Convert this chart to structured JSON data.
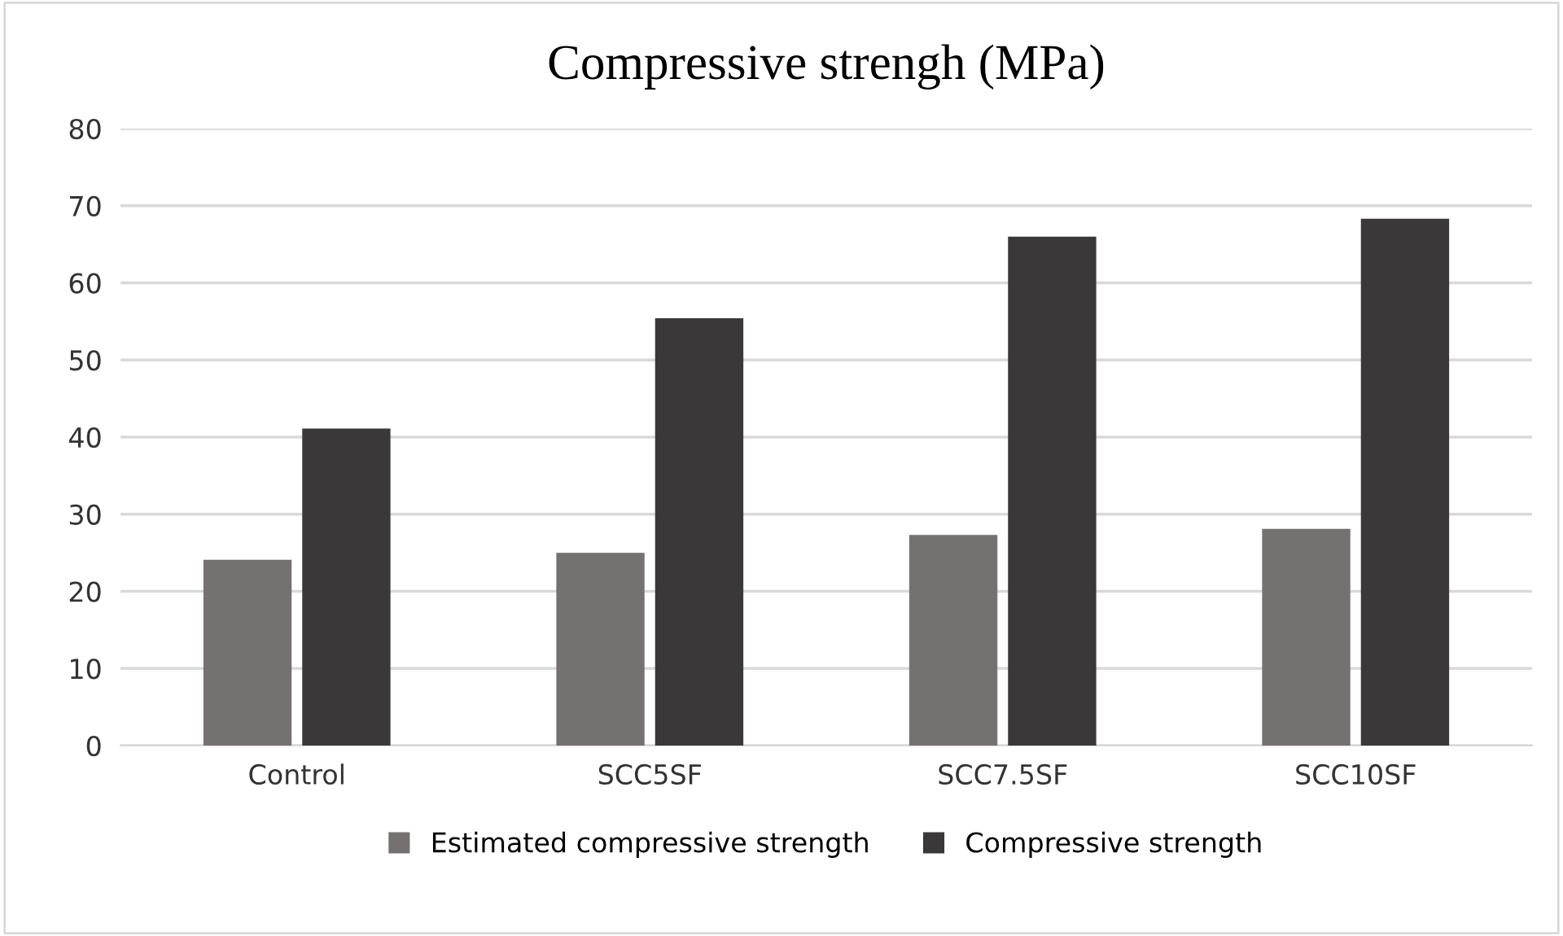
{
  "chart_data": {
    "type": "bar",
    "title": "Compressive strengh (MPa)",
    "categories": [
      "Control",
      "SCC5SF",
      "SCC7.5SF",
      "SCC10SF"
    ],
    "series": [
      {
        "name": "Estimated compressive strength",
        "color": "#767171",
        "values": [
          24.1,
          25.0,
          27.3,
          28.1
        ]
      },
      {
        "name": "Compressive strength",
        "color": "#3a3838",
        "values": [
          41.1,
          55.4,
          66.0,
          68.3
        ]
      }
    ],
    "ylim": [
      0,
      80
    ],
    "yticks": [
      0,
      10,
      20,
      30,
      40,
      50,
      60,
      70,
      80
    ],
    "grid": "y",
    "legend": "bottom"
  }
}
